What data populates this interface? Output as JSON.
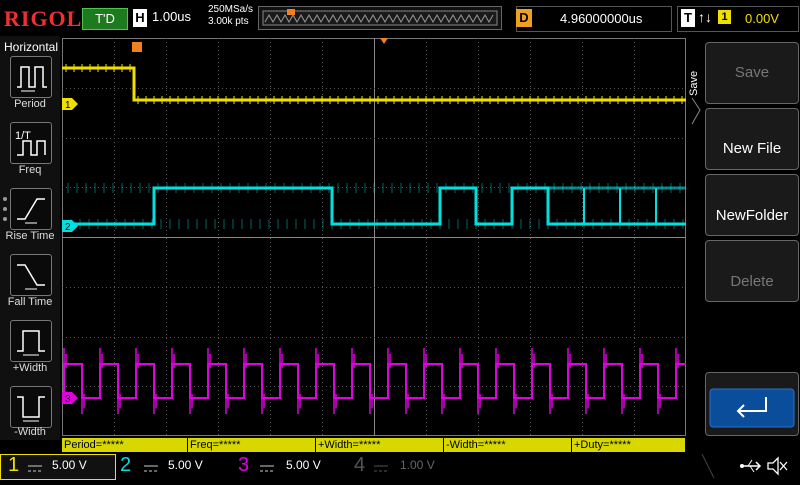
{
  "topbar": {
    "logo": "RIGOL",
    "trig_status": "T'D",
    "horizontal_badge": "H",
    "timebase": "1.00us",
    "sample_rate": "250MSa/s",
    "memory_depth": "3.00k pts",
    "delay_badge": "D",
    "delay": "4.96000000us",
    "trigger_badge": "T",
    "trigger_slope": "↑↓",
    "trigger_source": "1",
    "trigger_level": "0.00V"
  },
  "sidebar": {
    "title": "Horizontal",
    "items": [
      {
        "label": "Period",
        "icon": "period-icon"
      },
      {
        "label": "Freq",
        "icon": "freq-icon"
      },
      {
        "label": "Rise Time",
        "icon": "rise-time-icon"
      },
      {
        "label": "Fall Time",
        "icon": "fall-time-icon"
      },
      {
        "label": "+Width",
        "icon": "pos-width-icon"
      },
      {
        "label": "-Width",
        "icon": "neg-width-icon"
      }
    ]
  },
  "softkeys": {
    "menu_title": "Save",
    "items": [
      {
        "label": "Save",
        "enabled": false
      },
      {
        "label": "New File",
        "enabled": true
      },
      {
        "label": "NewFolder",
        "enabled": true
      },
      {
        "label": "Delete",
        "enabled": false
      },
      {
        "label": "",
        "icon": "return-arrow-icon",
        "enabled": true
      }
    ]
  },
  "measurements": [
    "Period=*****",
    "Freq=*****",
    "+Width=*****",
    "-Width=*****",
    "+Duty=*****"
  ],
  "channels": [
    {
      "num": "1",
      "scale": "5.00 V",
      "color": "#f0e000",
      "active": true
    },
    {
      "num": "2",
      "scale": "5.00 V",
      "color": "#00e0e0",
      "active": true
    },
    {
      "num": "3",
      "scale": "5.00 V",
      "color": "#e000e0",
      "active": true
    },
    {
      "num": "4",
      "scale": "1.00 V",
      "color": "#3060ff",
      "active": false
    }
  ],
  "trace_markers": [
    "1",
    "2",
    "3"
  ],
  "colors": {
    "ch1": "#f0e000",
    "ch2": "#00e0e0",
    "ch3": "#e000e0",
    "trigger": "#f08020",
    "grid": "#555555"
  },
  "status_icons": [
    "usb-icon",
    "speaker-mute-icon"
  ]
}
